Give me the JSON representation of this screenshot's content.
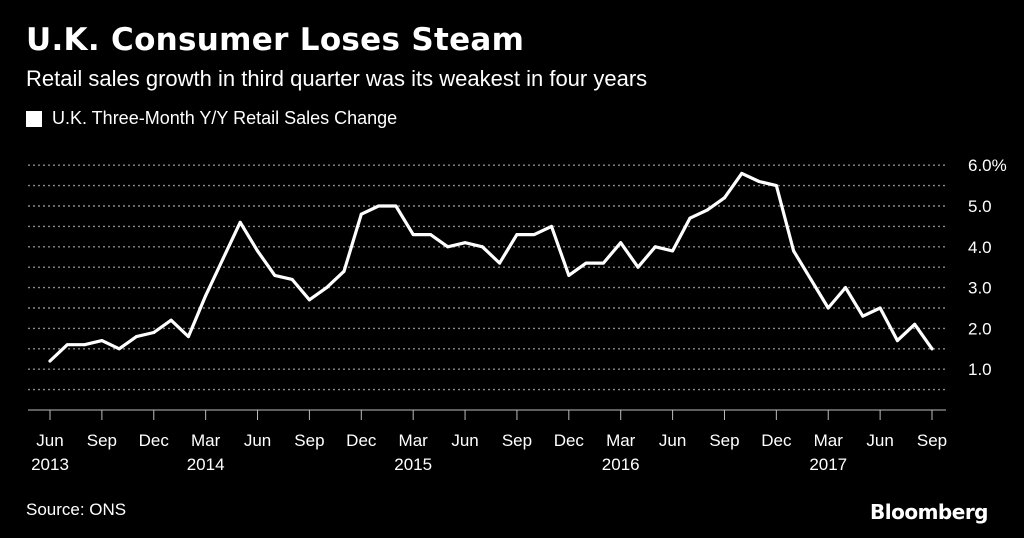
{
  "header": {
    "title": "U.K. Consumer Loses Steam",
    "subtitle": "Retail sales growth in third quarter was its weakest in four years"
  },
  "legend": {
    "label": "U.K. Three-Month Y/Y Retail Sales Change"
  },
  "footer": {
    "source": "Source: ONS",
    "brand": "Bloomberg"
  },
  "colors": {
    "background": "#000000",
    "line": "#ffffff",
    "grid": "#8a8a8a"
  },
  "chart_data": {
    "type": "line",
    "title": "U.K. Consumer Loses Steam",
    "subtitle": "Retail sales growth in third quarter was its weakest in four years",
    "xlabel": "",
    "ylabel": "",
    "ylim": [
      0,
      6.5
    ],
    "grid": true,
    "legend_position": "top-left",
    "y_ticks": [
      {
        "value": 1.0,
        "label": "1.0"
      },
      {
        "value": 2.0,
        "label": "2.0"
      },
      {
        "value": 3.0,
        "label": "3.0"
      },
      {
        "value": 4.0,
        "label": "4.0"
      },
      {
        "value": 5.0,
        "label": "5.0"
      },
      {
        "value": 6.0,
        "label": "6.0%"
      }
    ],
    "x_ticks": [
      {
        "month": "2013-06",
        "label": "Jun",
        "year": "2013"
      },
      {
        "month": "2013-09",
        "label": "Sep",
        "year": ""
      },
      {
        "month": "2013-12",
        "label": "Dec",
        "year": ""
      },
      {
        "month": "2014-03",
        "label": "Mar",
        "year": "2014"
      },
      {
        "month": "2014-06",
        "label": "Jun",
        "year": ""
      },
      {
        "month": "2014-09",
        "label": "Sep",
        "year": ""
      },
      {
        "month": "2014-12",
        "label": "Dec",
        "year": ""
      },
      {
        "month": "2015-03",
        "label": "Mar",
        "year": "2015"
      },
      {
        "month": "2015-06",
        "label": "Jun",
        "year": ""
      },
      {
        "month": "2015-09",
        "label": "Sep",
        "year": ""
      },
      {
        "month": "2015-12",
        "label": "Dec",
        "year": ""
      },
      {
        "month": "2016-03",
        "label": "Mar",
        "year": "2016"
      },
      {
        "month": "2016-06",
        "label": "Jun",
        "year": ""
      },
      {
        "month": "2016-09",
        "label": "Sep",
        "year": ""
      },
      {
        "month": "2016-12",
        "label": "Dec",
        "year": ""
      },
      {
        "month": "2017-03",
        "label": "Mar",
        "year": "2017"
      },
      {
        "month": "2017-06",
        "label": "Jun",
        "year": ""
      },
      {
        "month": "2017-09",
        "label": "Sep",
        "year": ""
      }
    ],
    "series": [
      {
        "name": "U.K. Three-Month Y/Y Retail Sales Change",
        "x": [
          "2013-06",
          "2013-07",
          "2013-08",
          "2013-09",
          "2013-10",
          "2013-11",
          "2013-12",
          "2014-01",
          "2014-02",
          "2014-03",
          "2014-04",
          "2014-05",
          "2014-06",
          "2014-07",
          "2014-08",
          "2014-09",
          "2014-10",
          "2014-11",
          "2014-12",
          "2015-01",
          "2015-02",
          "2015-03",
          "2015-04",
          "2015-05",
          "2015-06",
          "2015-07",
          "2015-08",
          "2015-09",
          "2015-10",
          "2015-11",
          "2015-12",
          "2016-01",
          "2016-02",
          "2016-03",
          "2016-04",
          "2016-05",
          "2016-06",
          "2016-07",
          "2016-08",
          "2016-09",
          "2016-10",
          "2016-11",
          "2016-12",
          "2017-01",
          "2017-02",
          "2017-03",
          "2017-04",
          "2017-05",
          "2017-06",
          "2017-07",
          "2017-08",
          "2017-09"
        ],
        "values": [
          1.2,
          1.6,
          1.6,
          1.7,
          1.5,
          1.8,
          1.9,
          2.2,
          1.8,
          2.8,
          3.7,
          4.6,
          3.9,
          3.3,
          3.2,
          2.7,
          3.0,
          3.4,
          4.8,
          5.0,
          5.0,
          4.3,
          4.3,
          4.0,
          4.1,
          4.0,
          3.6,
          4.3,
          4.3,
          4.5,
          3.3,
          3.6,
          3.6,
          4.1,
          3.5,
          4.0,
          3.9,
          4.7,
          4.9,
          5.2,
          5.8,
          5.6,
          5.5,
          3.9,
          3.2,
          2.5,
          3.0,
          2.3,
          2.5,
          1.7,
          2.1,
          1.5
        ]
      }
    ]
  }
}
